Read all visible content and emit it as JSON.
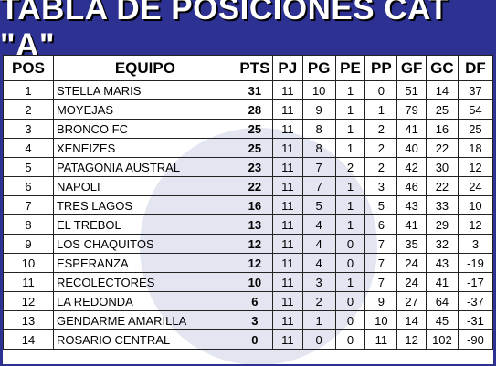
{
  "title": "TABLA DE POSICIONES CAT \"A\"",
  "colors": {
    "frame": "#2d3192",
    "watermark": "#d9dcec"
  },
  "headers": [
    "POS",
    "EQUIPO",
    "PTS",
    "PJ",
    "PG",
    "PE",
    "PP",
    "GF",
    "GC",
    "DF"
  ],
  "rows": [
    [
      "1",
      "STELLA MARIS",
      "31",
      "11",
      "10",
      "1",
      "0",
      "51",
      "14",
      "37"
    ],
    [
      "2",
      "MOYEJAS",
      "28",
      "11",
      "9",
      "1",
      "1",
      "79",
      "25",
      "54"
    ],
    [
      "3",
      "BRONCO FC",
      "25",
      "11",
      "8",
      "1",
      "2",
      "41",
      "16",
      "25"
    ],
    [
      "4",
      "XENEIZES",
      "25",
      "11",
      "8",
      "1",
      "2",
      "40",
      "22",
      "18"
    ],
    [
      "5",
      "PATAGONIA AUSTRAL",
      "23",
      "11",
      "7",
      "2",
      "2",
      "42",
      "30",
      "12"
    ],
    [
      "6",
      "NAPOLI",
      "22",
      "11",
      "7",
      "1",
      "3",
      "46",
      "22",
      "24"
    ],
    [
      "7",
      "TRES LAGOS",
      "16",
      "11",
      "5",
      "1",
      "5",
      "43",
      "33",
      "10"
    ],
    [
      "8",
      "EL TREBOL",
      "13",
      "11",
      "4",
      "1",
      "6",
      "41",
      "29",
      "12"
    ],
    [
      "9",
      "LOS CHAQUITOS",
      "12",
      "11",
      "4",
      "0",
      "7",
      "35",
      "32",
      "3"
    ],
    [
      "10",
      "ESPERANZA",
      "12",
      "11",
      "4",
      "0",
      "7",
      "24",
      "43",
      "-19"
    ],
    [
      "11",
      "RECOLECTORES",
      "10",
      "11",
      "3",
      "1",
      "7",
      "24",
      "41",
      "-17"
    ],
    [
      "12",
      "LA REDONDA",
      "6",
      "11",
      "2",
      "0",
      "9",
      "27",
      "64",
      "-37"
    ],
    [
      "13",
      "GENDARME AMARILLA",
      "3",
      "11",
      "1",
      "0",
      "10",
      "14",
      "45",
      "-31"
    ],
    [
      "14",
      "ROSARIO CENTRAL",
      "0",
      "11",
      "0",
      "0",
      "11",
      "12",
      "102",
      "-90"
    ]
  ]
}
